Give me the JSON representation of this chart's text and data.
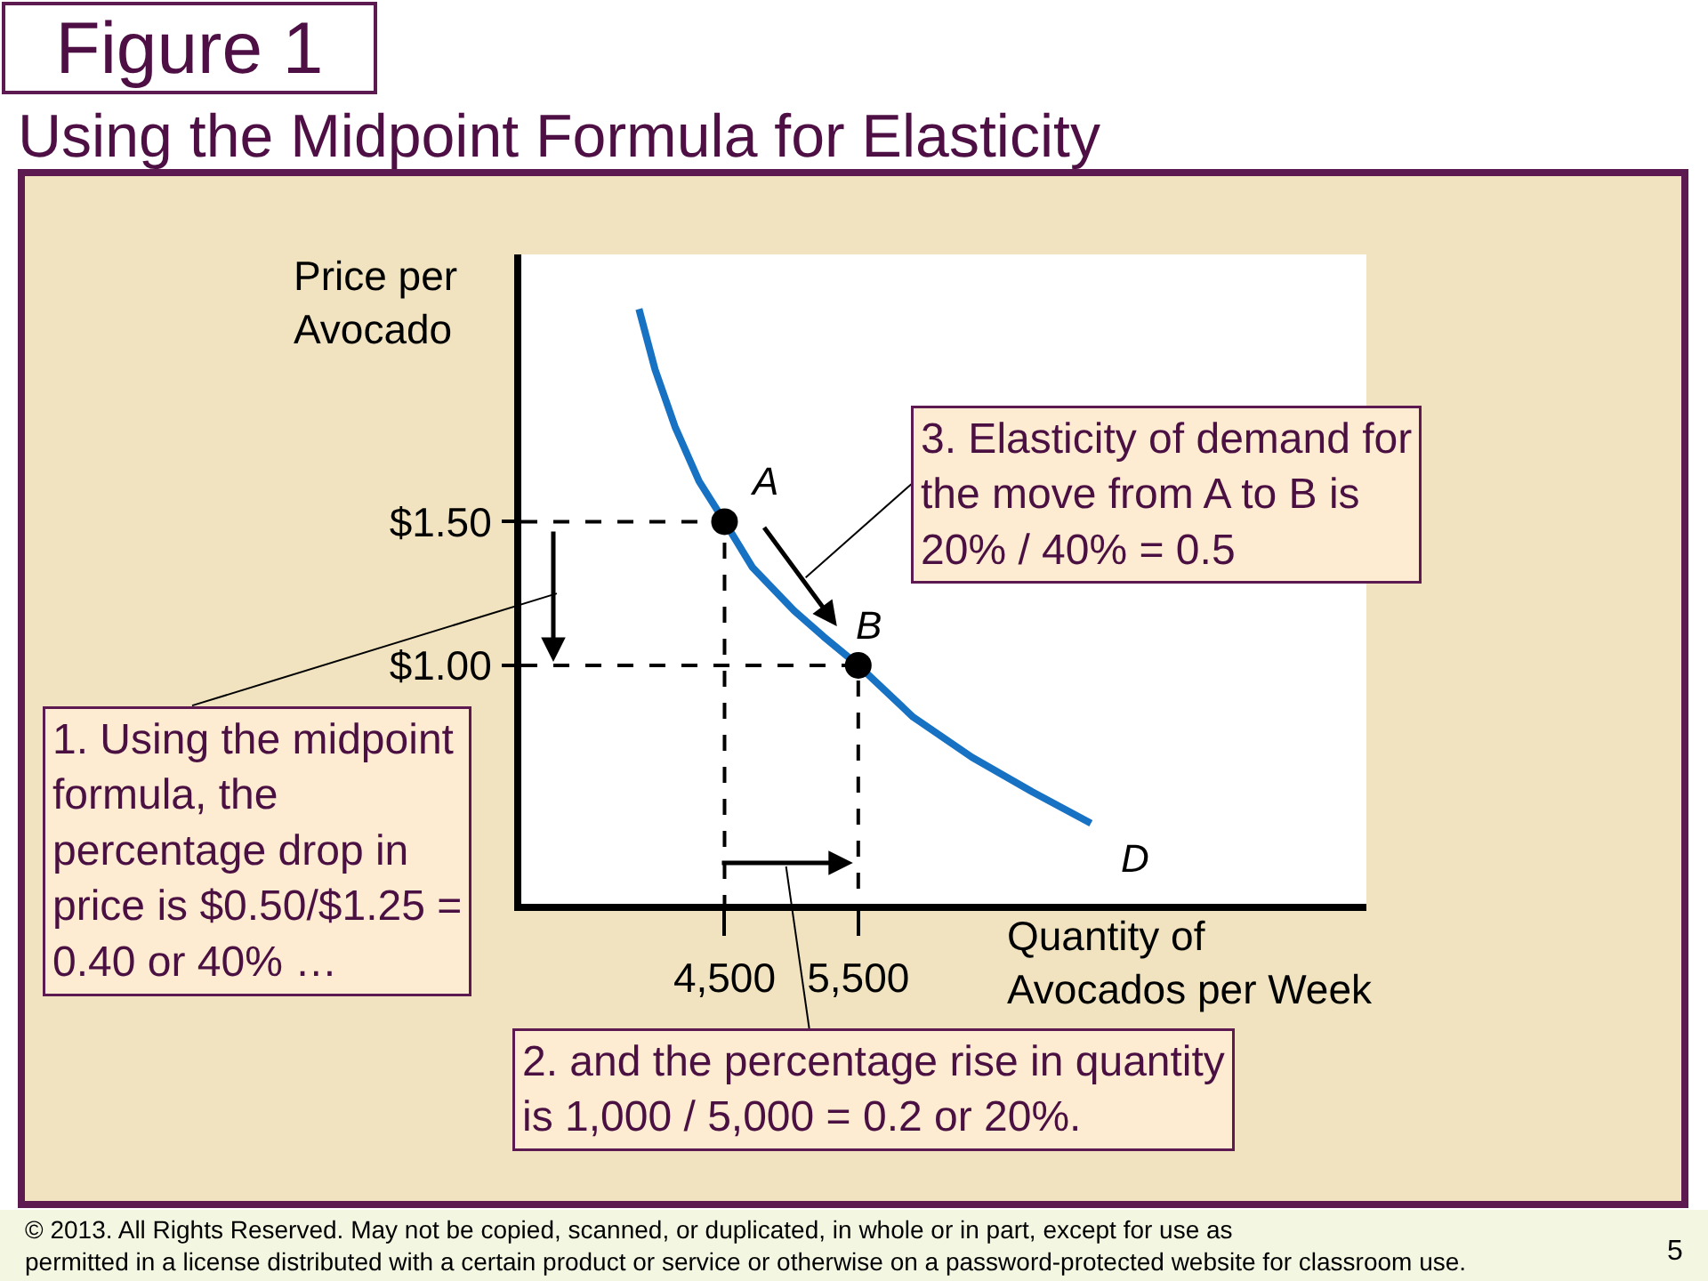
{
  "chart_data": {
    "type": "line",
    "title": "Figure 1",
    "subtitle": "Using the Midpoint Formula for Elasticity",
    "xlabel": "Quantity of\nAvocados per Week",
    "ylabel": "Price per\nAvocado",
    "xlim": [
      2980,
      9300
    ],
    "ylim": [
      0.17,
      2.43
    ],
    "xticks": [
      {
        "value": 4500,
        "label": "4,500"
      },
      {
        "value": 5500,
        "label": "5,500"
      }
    ],
    "yticks": [
      {
        "value": 1.0,
        "label": "$1.00"
      },
      {
        "value": 1.5,
        "label": "$1.50"
      }
    ],
    "grid": false,
    "legend": false,
    "series": [
      {
        "name": "D",
        "color": "#1872c4",
        "line_style": "solid",
        "marker": "none",
        "x": [
          3860,
          3980,
          4130,
          4310,
          4500,
          4710,
          5020,
          5240,
          5500,
          5910,
          6350,
          6800,
          7240
        ],
        "values": [
          2.24,
          2.03,
          1.83,
          1.64,
          1.5,
          1.34,
          1.19,
          1.1,
          1.0,
          0.82,
          0.68,
          0.56,
          0.45
        ]
      },
      {
        "type": "line",
        "color": "#000000",
        "line_style": "dashed",
        "marker": "none",
        "x": [
          2980,
          4500,
          4500
        ],
        "values": [
          1.5,
          1.5,
          0.17
        ]
      },
      {
        "type": "line",
        "color": "#000000",
        "line_style": "dashed",
        "marker": "none",
        "x": [
          2980,
          5500,
          5500
        ],
        "values": [
          1.0,
          1.0,
          0.17
        ]
      },
      {
        "type": "scatter",
        "color": "#000000",
        "marker": "circle",
        "x": [
          4500,
          5500
        ],
        "values": [
          1.5,
          1.0
        ]
      }
    ],
    "annotations": [
      {
        "text": "A",
        "x": 4500,
        "y": 1.5
      },
      {
        "text": "B",
        "x": 5500,
        "y": 1.0
      },
      "1. Using the midpoint\nformula, the\npercentage drop in\nprice is $0.50/$1.25 =\n0.40 or 40% …",
      "2. and the percentage rise in quantity\nis 1,000 / 5,000 = 0.2 or 20%.",
      "3. Elasticity of demand for\nthe move from A to B is\n20% / 40% = 0.5",
      "© 2013. All Rights Reserved. May not be copied, scanned, or duplicated, in whole or in part, except for use as\npermitted in a license distributed with a certain product or service or otherwise on a password-protected website for classroom use.",
      "5"
    ]
  }
}
